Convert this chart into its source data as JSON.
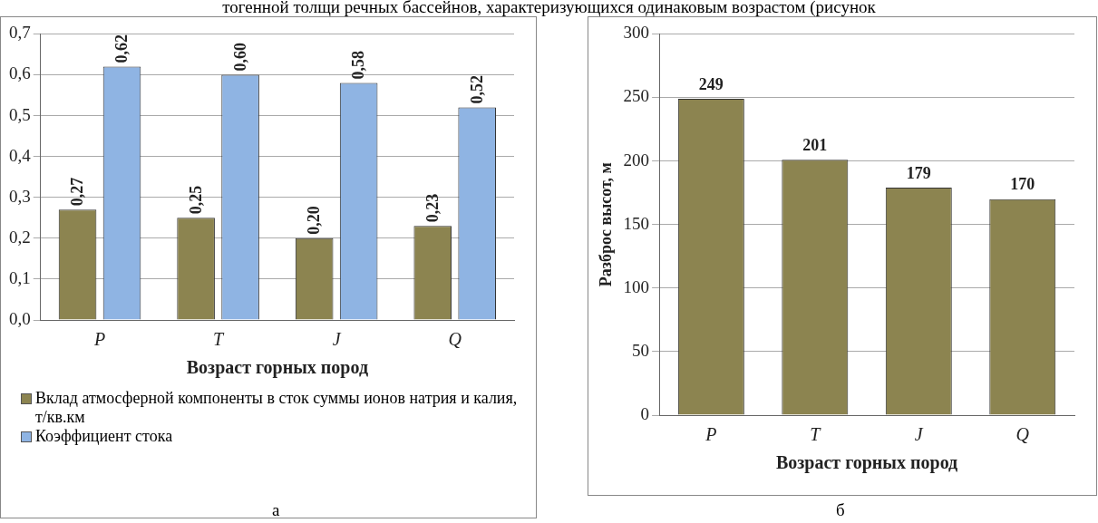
{
  "chart_data": [
    {
      "type": "bar",
      "xlabel": "Возраст горных пород",
      "categories": [
        "P",
        "T",
        "J",
        "Q"
      ],
      "series": [
        {
          "name": "Вклад атмосферной компоненты в сток суммы ионов натрия и калия, т/кв.км",
          "color": "#8c8450",
          "values": [
            0.27,
            0.25,
            0.2,
            0.23
          ],
          "value_labels": [
            "0,27",
            "0,25",
            "0,20",
            "0,23"
          ]
        },
        {
          "name": "Коэффициент стока",
          "color": "#8fb4e3",
          "values": [
            0.62,
            0.6,
            0.58,
            0.52
          ],
          "value_labels": [
            "0,62",
            "0,60",
            "0,58",
            "0,52"
          ]
        }
      ],
      "ylim": [
        0,
        0.7
      ],
      "yticks": [
        {
          "value": 0,
          "label": "0,0"
        },
        {
          "value": 0.1,
          "label": "0,1"
        },
        {
          "value": 0.2,
          "label": "0,2"
        },
        {
          "value": 0.3,
          "label": "0,3"
        },
        {
          "value": 0.4,
          "label": "0,4"
        },
        {
          "value": 0.5,
          "label": "0,5"
        },
        {
          "value": 0.6,
          "label": "0,6"
        },
        {
          "value": 0.7,
          "label": "0,7"
        }
      ],
      "grid": "y",
      "legend": "bottom",
      "annotations": [
        "тогенной толщи речных бассейнов, характеризующихся одинаковым возрастом (рисунок",
        "а"
      ]
    },
    {
      "type": "bar",
      "xlabel": "Возраст горных пород",
      "ylabel": "Разброс высот, м",
      "categories": [
        "P",
        "T",
        "J",
        "Q"
      ],
      "series": [
        {
          "color": "#8c8450",
          "values": [
            249,
            201,
            179,
            170
          ]
        }
      ],
      "data_labels": true,
      "ylim": [
        0,
        300
      ],
      "yticks": [
        0,
        50,
        100,
        150,
        200,
        250,
        300
      ],
      "grid": "y",
      "annotations": [
        "б"
      ]
    }
  ]
}
